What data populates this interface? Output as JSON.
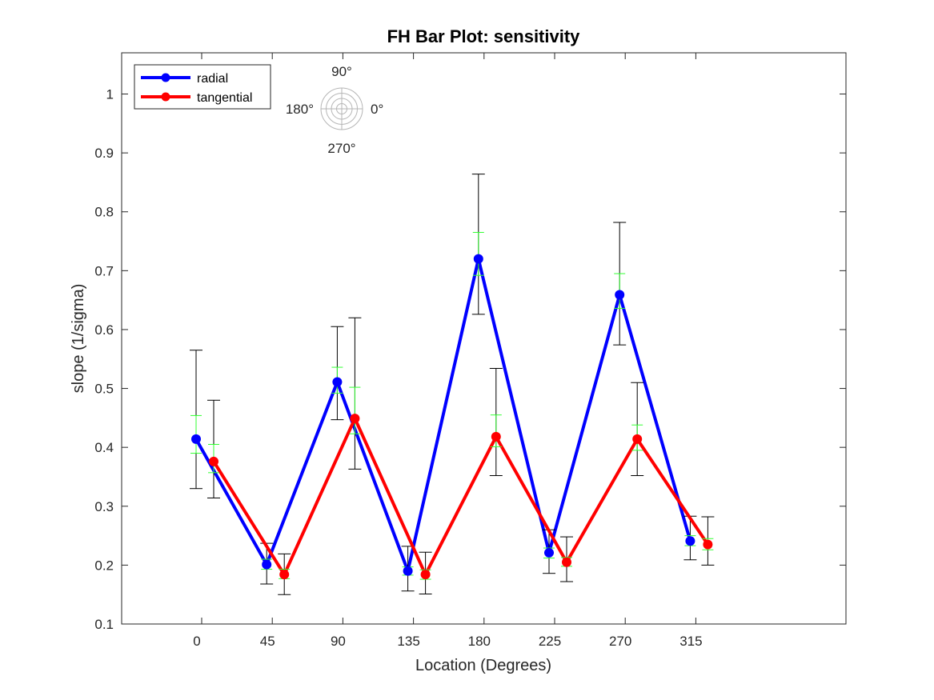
{
  "chart_data": {
    "type": "line",
    "title": "FH Bar Plot: sensitivity",
    "xlabel": "Location (Degrees)",
    "ylabel": "slope (1/sigma)",
    "categories": [
      "0",
      "45",
      "90",
      "135",
      "180",
      "225",
      "270",
      "315"
    ],
    "ylim": [
      0.1,
      1.07
    ],
    "yticks": [
      "0.1",
      "0.2",
      "0.3",
      "0.4",
      "0.5",
      "0.6",
      "0.7",
      "0.8",
      "0.9",
      "1"
    ],
    "grid": false,
    "legend_position": "top-left",
    "series": [
      {
        "name": "radial",
        "color": "#0000ff",
        "values": [
          0.414,
          0.201,
          0.511,
          0.19,
          0.72,
          0.221,
          0.659,
          0.241
        ],
        "err_outer": [
          [
            0.33,
            0.565
          ],
          [
            0.168,
            0.237
          ],
          [
            0.447,
            0.605
          ],
          [
            0.156,
            0.232
          ],
          [
            0.626,
            0.864
          ],
          [
            0.186,
            0.26
          ],
          [
            0.574,
            0.782
          ],
          [
            0.209,
            0.283
          ]
        ],
        "err_inner": [
          [
            0.39,
            0.454
          ],
          [
            0.193,
            0.21
          ],
          [
            0.492,
            0.536
          ],
          [
            0.183,
            0.197
          ],
          [
            0.692,
            0.765
          ],
          [
            0.212,
            0.229
          ],
          [
            0.636,
            0.695
          ],
          [
            0.233,
            0.25
          ]
        ]
      },
      {
        "name": "tangential",
        "color": "#ff0000",
        "values": [
          0.376,
          0.184,
          0.449,
          0.184,
          0.418,
          0.205,
          0.414,
          0.235
        ],
        "err_outer": [
          [
            0.314,
            0.48
          ],
          [
            0.15,
            0.219
          ],
          [
            0.363,
            0.62
          ],
          [
            0.151,
            0.222
          ],
          [
            0.352,
            0.534
          ],
          [
            0.172,
            0.248
          ],
          [
            0.352,
            0.51
          ],
          [
            0.2,
            0.282
          ]
        ],
        "err_inner": [
          [
            0.357,
            0.405
          ],
          [
            0.177,
            0.193
          ],
          [
            0.423,
            0.502
          ],
          [
            0.176,
            0.192
          ],
          [
            0.401,
            0.455
          ],
          [
            0.198,
            0.213
          ],
          [
            0.395,
            0.438
          ],
          [
            0.226,
            0.245
          ]
        ]
      }
    ],
    "inner_error_color": "#33ff33",
    "outer_error_color": "#000000",
    "polar_inset": {
      "labels": {
        "top": "90°",
        "left": "180°",
        "right": "0°",
        "bottom": "270°"
      }
    }
  }
}
